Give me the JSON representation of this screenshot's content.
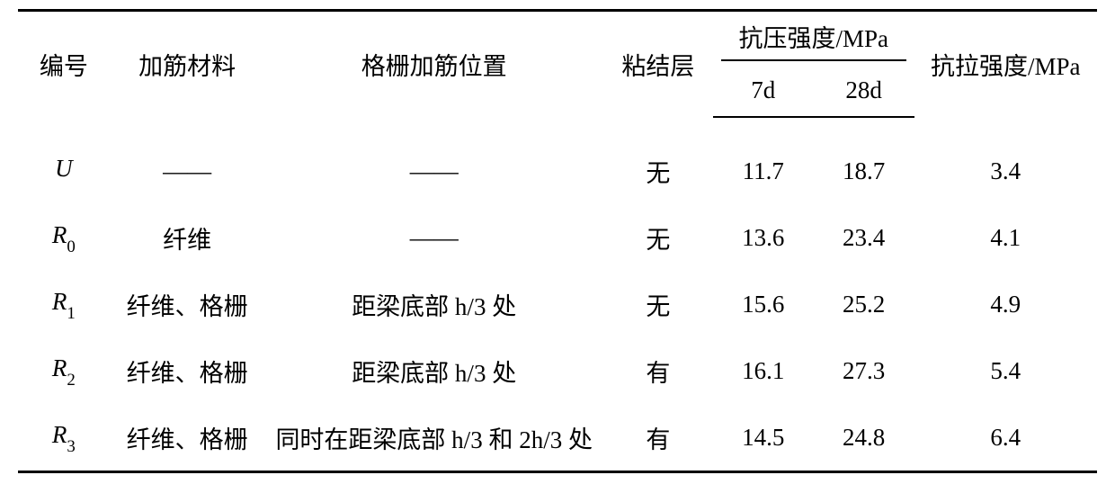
{
  "table": {
    "text_color": "#000000",
    "background_color": "#ffffff",
    "rule_color": "#000000",
    "font_size_header": 27,
    "font_size_body": 27,
    "em_dash": "——",
    "header": {
      "col_id": "编号",
      "col_material": "加筋材料",
      "col_position": "格栅加筋位置",
      "col_bond": "粘结层",
      "col_comp_group": "抗压强度/MPa",
      "col_comp_7d": "7d",
      "col_comp_28d": "28d",
      "col_tensile": "抗拉强度/MPa"
    },
    "rows": [
      {
        "id_main": "U",
        "id_sub": "",
        "material": "——",
        "position": "——",
        "bond": "无",
        "d7": "11.7",
        "d28": "18.7",
        "tensile": "3.4"
      },
      {
        "id_main": "R",
        "id_sub": "0",
        "material": "纤维",
        "position": "——",
        "bond": "无",
        "d7": "13.6",
        "d28": "23.4",
        "tensile": "4.1"
      },
      {
        "id_main": "R",
        "id_sub": "1",
        "material": "纤维、格栅",
        "position": "距梁底部 h/3 处",
        "bond": "无",
        "d7": "15.6",
        "d28": "25.2",
        "tensile": "4.9"
      },
      {
        "id_main": "R",
        "id_sub": "2",
        "material": "纤维、格栅",
        "position": "距梁底部 h/3 处",
        "bond": "有",
        "d7": "16.1",
        "d28": "27.3",
        "tensile": "5.4"
      },
      {
        "id_main": "R",
        "id_sub": "3",
        "material": "纤维、格栅",
        "position": "同时在距梁底部 h/3 和 2h/3 处",
        "bond": "有",
        "d7": "14.5",
        "d28": "24.8",
        "tensile": "6.4"
      }
    ]
  }
}
